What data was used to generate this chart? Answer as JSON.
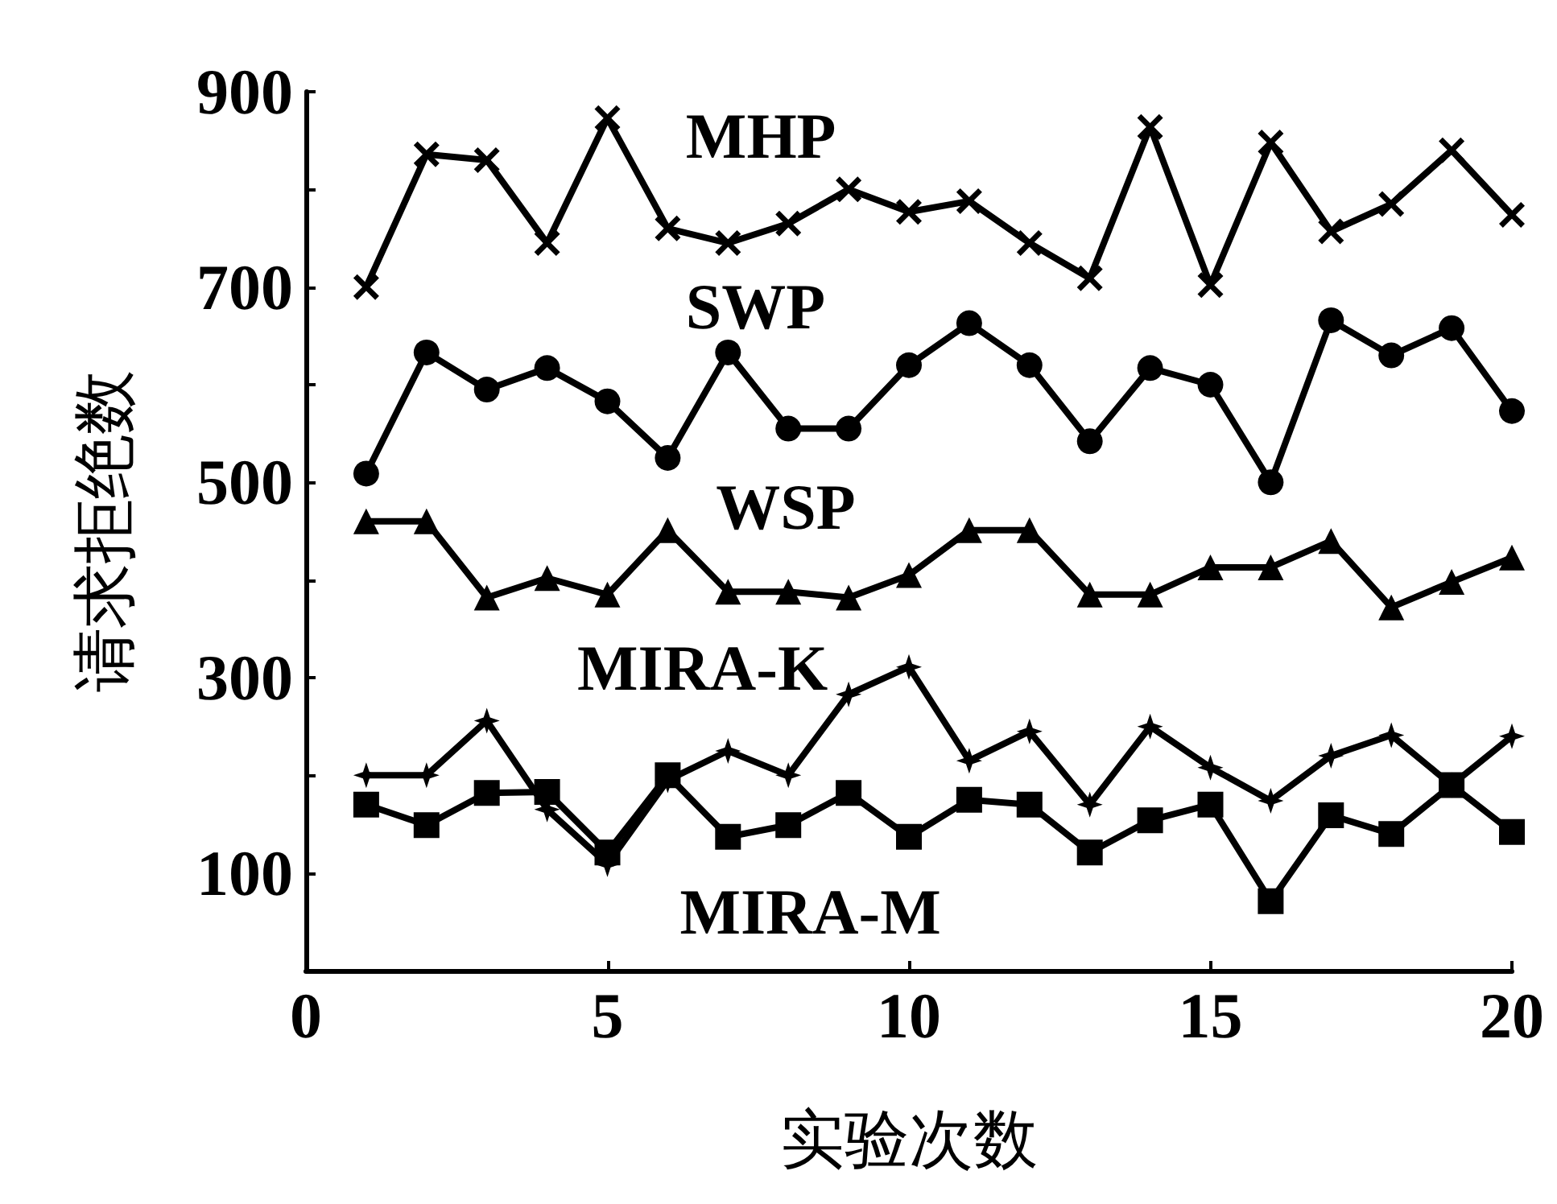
{
  "chart_data": {
    "type": "line",
    "xlabel": "实验次数",
    "ylabel": "请求拒绝数",
    "x": [
      1,
      2,
      3,
      4,
      5,
      6,
      7,
      8,
      9,
      10,
      11,
      12,
      13,
      14,
      15,
      16,
      17,
      18,
      19,
      20
    ],
    "xlim": [
      0,
      20
    ],
    "xticks": [
      0,
      5,
      10,
      15,
      20
    ],
    "ylim": [
      0,
      900
    ],
    "yticks": [
      {
        "value": 0,
        "label": null
      },
      100,
      {
        "value": 200,
        "label": null
      },
      300,
      {
        "value": 400,
        "label": null
      },
      500,
      {
        "value": 600,
        "label": null
      },
      700,
      {
        "value": 800,
        "label": null
      },
      900
    ],
    "grid": false,
    "legend": false,
    "line_style": "solid",
    "series": [
      {
        "name": "MHP",
        "color": "#000000",
        "marker": "cross",
        "values": [
          700,
          836,
          830,
          745,
          873,
          760,
          745,
          765,
          800,
          777,
          788,
          745,
          709,
          864,
          702,
          848,
          757,
          785,
          840,
          774
        ]
      },
      {
        "name": "SWP",
        "color": "#000000",
        "marker": "circle",
        "values": [
          509,
          633,
          595,
          617,
          583,
          525,
          633,
          555,
          555,
          620,
          663,
          620,
          542,
          617,
          600,
          500,
          666,
          630,
          658,
          573
        ]
      },
      {
        "name": "WSP",
        "color": "#000000",
        "marker": "triangle",
        "values": [
          460,
          460,
          382,
          402,
          385,
          451,
          388,
          388,
          382,
          405,
          451,
          451,
          385,
          385,
          413,
          413,
          440,
          372,
          398,
          423
        ]
      },
      {
        "name": "MIRA-K",
        "color": "#000000",
        "marker": "star",
        "values": [
          200,
          200,
          256,
          165,
          109,
          195,
          225,
          200,
          283,
          311,
          215,
          245,
          170,
          250,
          208,
          174,
          220,
          241,
          190,
          240
        ]
      },
      {
        "name": "MIRA-M",
        "color": "#000000",
        "marker": "square",
        "values": [
          170,
          149,
          182,
          183,
          121,
          200,
          137,
          149,
          182,
          137,
          175,
          170,
          121,
          154,
          170,
          71,
          159,
          140,
          190,
          142
        ]
      }
    ]
  }
}
